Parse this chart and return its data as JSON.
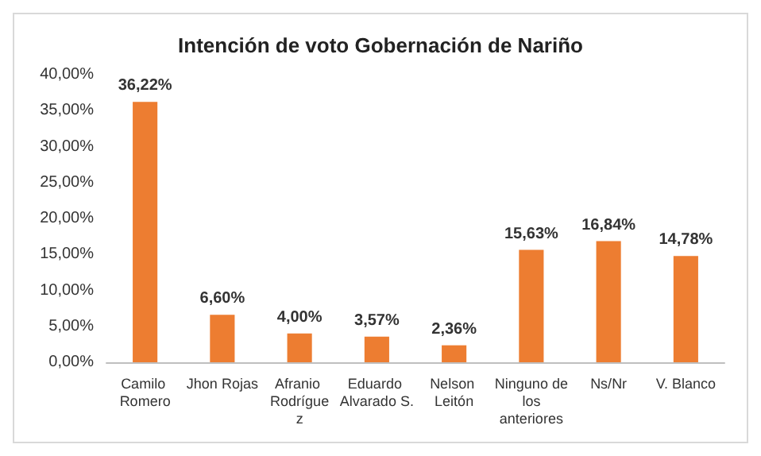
{
  "chart_data": {
    "type": "bar",
    "title": "Intención de voto Gobernación de Nariño",
    "categories": [
      "Camilo Romero",
      "Jhon Rojas",
      "Afranio Rodríguez",
      "Eduardo Alvarado S.",
      "Nelson Leitón",
      "Ninguno de los anteriores",
      "Ns/Nr",
      "V. Blanco"
    ],
    "values": [
      36.22,
      6.6,
      4.0,
      3.57,
      2.36,
      15.63,
      16.84,
      14.78
    ],
    "value_labels": [
      "36,22%",
      "6,60%",
      "4,00%",
      "3,57%",
      "2,36%",
      "15,63%",
      "16,84%",
      "14,78%"
    ],
    "color": "#ed7d31",
    "ylim": [
      0,
      40
    ],
    "yticks": [
      {
        "value": 0,
        "label": "0,00%"
      },
      {
        "value": 5,
        "label": "5,00%"
      },
      {
        "value": 10,
        "label": "10,00%"
      },
      {
        "value": 15,
        "label": "15,00%"
      },
      {
        "value": 20,
        "label": "20,00%"
      },
      {
        "value": 25,
        "label": "25,00%"
      },
      {
        "value": 30,
        "label": "30,00%"
      },
      {
        "value": 35,
        "label": "35,00%"
      },
      {
        "value": 40,
        "label": "40,00%"
      }
    ],
    "grid": false
  }
}
